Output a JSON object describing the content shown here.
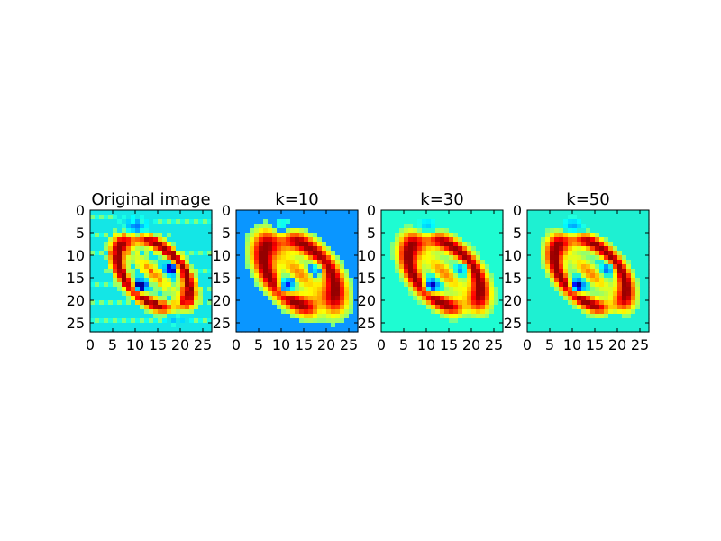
{
  "chart_data": [
    {
      "type": "heatmap",
      "title": "Original image",
      "xlabel": "",
      "ylabel": "",
      "xlim": [
        0,
        27
      ],
      "ylim": [
        27,
        0
      ],
      "x_ticks": [
        "0",
        "5",
        "10",
        "15",
        "20",
        "25"
      ],
      "y_ticks": [
        "0",
        "5",
        "10",
        "15",
        "20",
        "25"
      ],
      "colormap": "jet",
      "background_color": "#14e6e6",
      "shape": "ring",
      "sharpness": 1.0,
      "features": [
        "diagonal ring / figure-eight of a handwritten digit",
        "red-orange core around (15,10)",
        "dark blue patches near (11,17) and (17,14)",
        "dark blue halo above ring near (10,6)"
      ]
    },
    {
      "type": "heatmap",
      "title": "k=10",
      "xlabel": "",
      "ylabel": "",
      "xlim": [
        0,
        27
      ],
      "ylim": [
        27,
        0
      ],
      "x_ticks": [
        "0",
        "5",
        "10",
        "15",
        "20",
        "25"
      ],
      "y_ticks": [
        "0",
        "5",
        "10",
        "15",
        "20",
        "25"
      ],
      "colormap": "jet",
      "background_color": "#0a96ff",
      "shape": "blurred",
      "sharpness": 0.45,
      "features": [
        "smooth figure-eight reconstruction",
        "red blobs at (13,10), (18,17), (7,19)",
        "dark blue at (10,5) and (19,21)"
      ]
    },
    {
      "type": "heatmap",
      "title": "k=30",
      "xlabel": "",
      "ylabel": "",
      "xlim": [
        0,
        27
      ],
      "ylim": [
        27,
        0
      ],
      "x_ticks": [
        "0",
        "5",
        "10",
        "15",
        "20",
        "25"
      ],
      "y_ticks": [
        "0",
        "5",
        "10",
        "15",
        "20",
        "25"
      ],
      "colormap": "jet",
      "background_color": "#1efcd2",
      "shape": "sharper",
      "sharpness": 0.7,
      "features": [
        "sharper figure-eight",
        "dark red at (7,20) and (14,9)",
        "blue at (10,17)"
      ]
    },
    {
      "type": "heatmap",
      "title": "k=50",
      "xlabel": "",
      "ylabel": "",
      "xlim": [
        0,
        27
      ],
      "ylim": [
        27,
        0
      ],
      "x_ticks": [
        "0",
        "5",
        "10",
        "15",
        "20",
        "25"
      ],
      "y_ticks": [
        "0",
        "5",
        "10",
        "15",
        "20",
        "25"
      ],
      "colormap": "jet",
      "background_color": "#1ef0d2",
      "shape": "sharpest",
      "sharpness": 0.85,
      "features": [
        "closest to original",
        "red core at (14,10) and (8,17)",
        "blue at (11,17) and (18,13)"
      ]
    }
  ]
}
